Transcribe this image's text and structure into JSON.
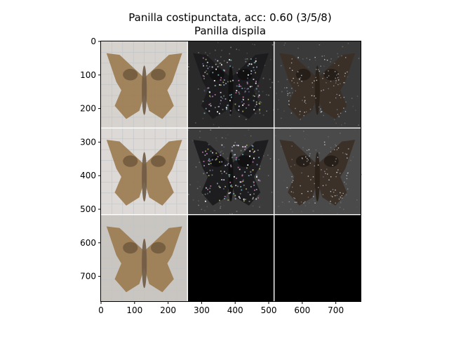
{
  "chart_data": {
    "type": "image-grid",
    "title": "Panilla costipunctata, acc: 0.60 (3/5/8)",
    "subtitle": "Panilla dispila",
    "xlim": [
      0,
      774
    ],
    "ylim": [
      774,
      0
    ],
    "x_ticks": [
      0,
      100,
      200,
      300,
      400,
      500,
      600,
      700
    ],
    "y_ticks": [
      0,
      100,
      200,
      300,
      400,
      500,
      600,
      700
    ],
    "grid": false,
    "panels": [
      {
        "row": 0,
        "col": 0,
        "content": "moth-specimen-photo",
        "background": "#d6d3cf"
      },
      {
        "row": 0,
        "col": 1,
        "content": "noisy-saliency-map",
        "background": "#2a2a2a"
      },
      {
        "row": 0,
        "col": 2,
        "content": "dark-overlay",
        "background": "#3a3a3a"
      },
      {
        "row": 1,
        "col": 0,
        "content": "moth-specimen-photo",
        "background": "#dcd9d6"
      },
      {
        "row": 1,
        "col": 1,
        "content": "noisy-saliency-map",
        "background": "#3c3c3c"
      },
      {
        "row": 1,
        "col": 2,
        "content": "dark-overlay",
        "background": "#4a4a4a"
      },
      {
        "row": 2,
        "col": 0,
        "content": "moth-specimen-photo",
        "background": "#c9c6c1"
      },
      {
        "row": 2,
        "col": 1,
        "content": "empty",
        "background": "#000000"
      },
      {
        "row": 2,
        "col": 2,
        "content": "empty",
        "background": "#000000"
      }
    ]
  },
  "colors": {
    "moth_wing": "#9b7a4f",
    "moth_wing_dark": "#5f4a32",
    "moth_body": "#6f5a44",
    "separator": "#ffffff"
  }
}
